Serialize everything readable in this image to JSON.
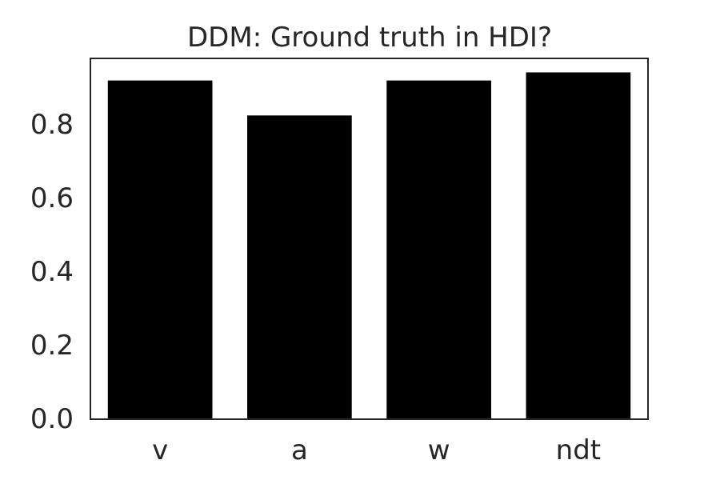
{
  "chart_data": {
    "type": "bar",
    "title": "DDM: Ground truth in HDI?",
    "xlabel": "",
    "ylabel": "",
    "categories": [
      "v",
      "a",
      "w",
      "ndt"
    ],
    "values": [
      0.92,
      0.825,
      0.92,
      0.942
    ],
    "ylim": [
      0,
      0.98
    ],
    "yticks": [
      "0.0",
      "0.2",
      "0.4",
      "0.6",
      "0.8"
    ],
    "grid": false,
    "legend": "none",
    "bar_color": "#000000",
    "axis_color": "#262626"
  }
}
